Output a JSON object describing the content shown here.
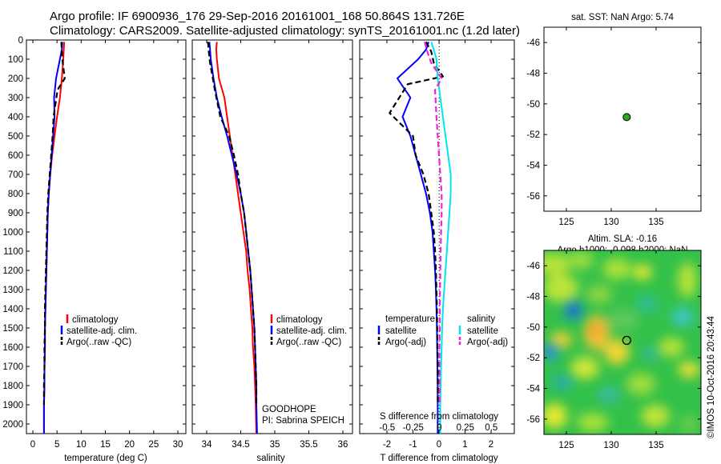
{
  "header": {
    "title_line1": "Argo profile: IF 6900936_176 29-Sep-2016 20161001_168 50.864S 131.726E",
    "title_line2": "Climatology: CARS2009. Satellite-adjusted climatology: synTS_20161001.nc (1.2d later)"
  },
  "colors": {
    "climatology": "#ff0000",
    "satellite": "#0000ff",
    "argo": "#000000",
    "salinity_satellite": "#00e5ee",
    "salinity_argo": "#ee22dd",
    "float_marker": "#22aa22"
  },
  "depth_ticks": [
    "0",
    "100",
    "200",
    "300",
    "400",
    "500",
    "600",
    "700",
    "800",
    "900",
    "1000",
    "1100",
    "1200",
    "1300",
    "1400",
    "1500",
    "1600",
    "1700",
    "1800",
    "1900",
    "2000"
  ],
  "temperature_panel": {
    "xlabel": "temperature (deg C)",
    "xticks": [
      "0",
      "5",
      "10",
      "15",
      "20",
      "25",
      "30"
    ],
    "legend": [
      "climatology",
      "satellite-adj. clim.",
      "Argo(..raw -QC)"
    ]
  },
  "salinity_panel": {
    "xlabel": "salinity",
    "xticks": [
      "34",
      "34.5",
      "35",
      "35.5",
      "36"
    ],
    "legend": [
      "climatology",
      "satellite-adj. clim.",
      "Argo(..raw -QC)"
    ],
    "note_line1": "GOODHOPE",
    "note_line2": "PI: Sabrina SPEICH"
  },
  "difference_panel": {
    "xlabel": "T difference from climatology",
    "top_label": "S difference from climatology",
    "xticks": [
      "-2",
      "-1",
      "0",
      "1",
      "2"
    ],
    "s_ticks": [
      "-0.5",
      "-0.25",
      "0",
      "0.25",
      "0.5"
    ],
    "legend_temperature_header": "temperature",
    "legend_salinity_header": "salinity",
    "legend_satellite": "satellite",
    "legend_argo": "Argo(-adj)"
  },
  "sst_map": {
    "title": "sat. SST: NaN Argo: 5.74",
    "yticks": [
      "-46",
      "-48",
      "-50",
      "-52",
      "-54",
      "-56"
    ],
    "xticks": [
      "125",
      "130",
      "135"
    ]
  },
  "sla_map": {
    "title_line1": "Altim. SLA: -0.16",
    "title_line2": "Argo h1000: -0.098 h2000: NaN",
    "yticks": [
      "-46",
      "-48",
      "-50",
      "-52",
      "-54",
      "-56"
    ],
    "xticks": [
      "125",
      "130",
      "135"
    ]
  },
  "credit": "©IMOS 10-Oct-2016 20:43:44",
  "chart_data": [
    {
      "type": "line",
      "panel": "temperature",
      "xlabel": "temperature (deg C)",
      "ylabel": "",
      "xlim": [
        -2,
        31
      ],
      "ylim": [
        2050,
        0
      ],
      "series": [
        {
          "name": "climatology",
          "color": "#ff0000",
          "style": "solid",
          "x": [
            6.5,
            6.4,
            6.3,
            6.0,
            5.6,
            5.0,
            4.5,
            4.0,
            3.6,
            3.3,
            3.1,
            3.0,
            2.9,
            2.8,
            2.7,
            2.6,
            2.5,
            2.5,
            2.4,
            2.4,
            2.3,
            2.3
          ],
          "y": [
            10,
            50,
            100,
            200,
            300,
            400,
            500,
            600,
            700,
            800,
            900,
            1000,
            1100,
            1200,
            1300,
            1400,
            1500,
            1600,
            1700,
            1800,
            1900,
            2050
          ]
        },
        {
          "name": "satellite-adj. clim.",
          "color": "#0000ff",
          "style": "solid",
          "x": [
            6.1,
            6.0,
            5.6,
            4.8,
            4.4,
            4.5,
            4.2,
            3.9,
            3.6,
            3.3,
            3.1,
            3.0,
            2.9,
            2.8,
            2.7,
            2.6,
            2.5,
            2.5,
            2.4,
            2.4,
            2.3,
            2.3
          ],
          "y": [
            10,
            50,
            100,
            200,
            300,
            400,
            500,
            600,
            700,
            800,
            900,
            1000,
            1100,
            1200,
            1300,
            1400,
            1500,
            1600,
            1700,
            1800,
            1900,
            2050
          ]
        },
        {
          "name": "Argo(..raw -QC)",
          "color": "#000000",
          "style": "dashed",
          "x": [
            5.9,
            6.0,
            6.2,
            6.6,
            5.1,
            4.3,
            4.1,
            3.8,
            3.5,
            3.2,
            3.0,
            2.9,
            2.8,
            2.7,
            2.6,
            2.5,
            2.5,
            2.4,
            2.4,
            2.3,
            2.3
          ],
          "y": [
            10,
            60,
            120,
            200,
            260,
            400,
            500,
            600,
            700,
            800,
            900,
            1000,
            1100,
            1200,
            1300,
            1400,
            1500,
            1600,
            1700,
            1800,
            1900
          ]
        }
      ]
    },
    {
      "type": "line",
      "panel": "salinity",
      "xlabel": "salinity",
      "ylabel": "",
      "xlim": [
        33.9,
        36.1
      ],
      "ylim": [
        2050,
        0
      ],
      "series": [
        {
          "name": "climatology",
          "color": "#ff0000",
          "style": "solid",
          "x": [
            34.15,
            34.14,
            34.15,
            34.18,
            34.26,
            34.3,
            34.34,
            34.38,
            34.42,
            34.46,
            34.5,
            34.54,
            34.58,
            34.6,
            34.63,
            34.65,
            34.67,
            34.68,
            34.7,
            34.71,
            34.72,
            34.73
          ],
          "y": [
            10,
            50,
            100,
            200,
            300,
            400,
            500,
            600,
            700,
            800,
            900,
            1000,
            1100,
            1200,
            1300,
            1400,
            1500,
            1600,
            1700,
            1800,
            1900,
            2050
          ]
        },
        {
          "name": "satellite-adj. clim.",
          "color": "#0000ff",
          "style": "solid",
          "x": [
            34.04,
            34.05,
            34.06,
            34.1,
            34.15,
            34.22,
            34.3,
            34.37,
            34.44,
            34.5,
            34.55,
            34.58,
            34.61,
            34.64,
            34.66,
            34.68,
            34.7,
            34.71,
            34.72,
            34.73,
            34.73,
            34.74
          ],
          "y": [
            10,
            50,
            100,
            200,
            300,
            400,
            500,
            600,
            700,
            800,
            900,
            1000,
            1100,
            1200,
            1300,
            1400,
            1500,
            1600,
            1700,
            1800,
            1900,
            2050
          ]
        },
        {
          "name": "Argo(..raw -QC)",
          "color": "#000000",
          "style": "dashed",
          "x": [
            34.02,
            34.03,
            34.05,
            34.09,
            34.12,
            34.2,
            34.33,
            34.4,
            34.46,
            34.5,
            34.55,
            34.58,
            34.61,
            34.64,
            34.66,
            34.68,
            34.7,
            34.71,
            34.72,
            34.73,
            34.73
          ],
          "y": [
            10,
            60,
            120,
            200,
            260,
            400,
            500,
            600,
            700,
            800,
            900,
            1000,
            1100,
            1200,
            1300,
            1400,
            1500,
            1600,
            1700,
            1800,
            1900
          ]
        }
      ]
    },
    {
      "type": "line",
      "panel": "difference",
      "xlabel": "T difference from climatology",
      "top_xlabel": "S difference from climatology",
      "xlim": [
        -2.5,
        3
      ],
      "ylim": [
        2050,
        0
      ],
      "series": [
        {
          "name": "temperature satellite",
          "color": "#0000ff",
          "style": "solid",
          "x": [
            -0.4,
            -0.5,
            -0.8,
            -1.6,
            -1.1,
            -1.4,
            -1.1,
            -0.9,
            -0.7,
            -0.5,
            -0.35,
            -0.25,
            -0.2,
            -0.15,
            -0.12,
            -0.1,
            -0.08,
            -0.07,
            -0.06,
            -0.05,
            -0.05,
            -0.05
          ],
          "y": [
            10,
            50,
            100,
            200,
            300,
            400,
            500,
            600,
            700,
            800,
            900,
            1000,
            1100,
            1200,
            1300,
            1400,
            1500,
            1600,
            1700,
            1800,
            1900,
            2050
          ]
        },
        {
          "name": "temperature Argo(-adj)",
          "color": "#000000",
          "style": "dashed",
          "x": [
            -0.5,
            -0.3,
            -0.2,
            0.15,
            -1.2,
            -1.9,
            -1.0,
            -0.9,
            -0.6,
            -0.4,
            -0.3,
            -0.2,
            -0.15,
            -0.12,
            -0.1,
            -0.08,
            -0.07,
            -0.06,
            -0.05,
            -0.05,
            -0.05
          ],
          "y": [
            10,
            60,
            120,
            190,
            230,
            380,
            500,
            600,
            700,
            800,
            900,
            1000,
            1100,
            1200,
            1300,
            1400,
            1500,
            1600,
            1700,
            1800,
            1900
          ]
        },
        {
          "name": "salinity satellite",
          "color": "#00e5ee",
          "style": "solid",
          "x": [
            -0.3,
            -0.2,
            -0.1,
            -0.05,
            0.05,
            0.15,
            0.25,
            0.35,
            0.45,
            0.45,
            0.4,
            0.35,
            0.3,
            0.25,
            0.2,
            0.15,
            0.12,
            0.1,
            0.08,
            0.06,
            0.05,
            0.05
          ],
          "y": [
            10,
            50,
            100,
            200,
            300,
            400,
            500,
            600,
            700,
            800,
            900,
            1000,
            1100,
            1200,
            1300,
            1400,
            1500,
            1600,
            1700,
            1800,
            1900,
            2050
          ]
        },
        {
          "name": "salinity Argo(-adj)",
          "color": "#ee22dd",
          "style": "dashed",
          "x": [
            -0.55,
            -0.45,
            -0.3,
            0.1,
            -0.15,
            -0.1,
            -0.05,
            0.0,
            0.05,
            0.1,
            0.1,
            0.08,
            0.06,
            0.05,
            0.04,
            0.03,
            0.03,
            0.02,
            0.02,
            0.02,
            0.02
          ],
          "y": [
            10,
            60,
            120,
            200,
            260,
            400,
            500,
            600,
            700,
            800,
            900,
            1000,
            1100,
            1200,
            1300,
            1400,
            1500,
            1600,
            1700,
            1800,
            1900
          ]
        }
      ]
    },
    {
      "type": "scatter",
      "panel": "sst_map",
      "title": "sat. SST: NaN Argo: 5.74",
      "xlim": [
        122.5,
        140
      ],
      "ylim": [
        -57,
        -45
      ],
      "series": [
        {
          "name": "",
          "x": [
            131.726
          ],
          "y": [
            -50.864
          ]
        }
      ]
    },
    {
      "type": "heatmap",
      "panel": "sla_map",
      "title": "Altim. SLA: -0.16",
      "xlim": [
        122.5,
        140
      ],
      "ylim": [
        -57,
        -45
      ],
      "argo_position": {
        "x": 131.726,
        "y": -50.864
      }
    }
  ]
}
